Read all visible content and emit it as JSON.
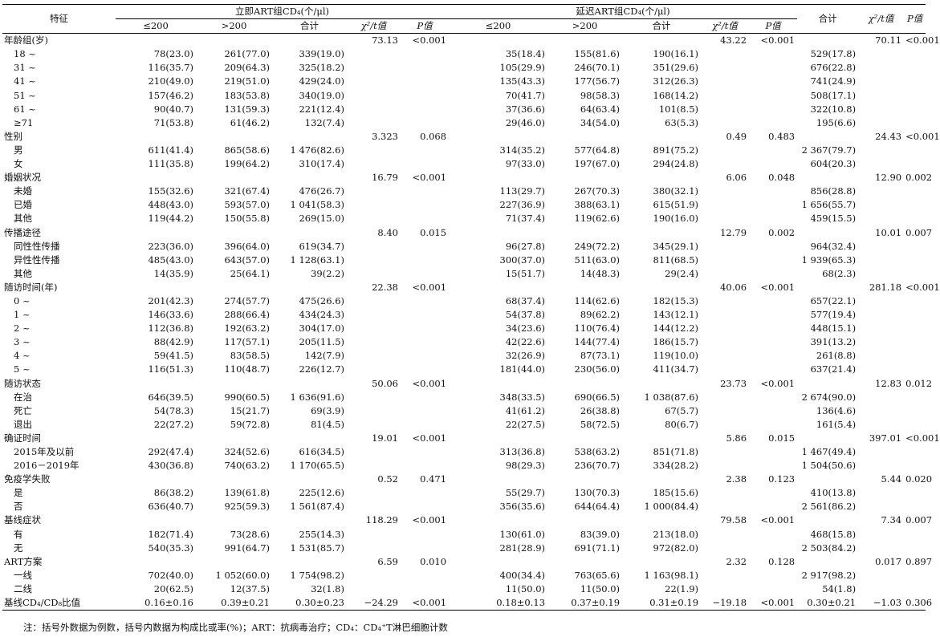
{
  "header": {
    "feature": "特征",
    "immediate_group": "立即ART组CD₄(个/μl)",
    "delayed_group": "延迟ART组CD₄(个/μl)",
    "total": "合计",
    "chi_t": "χ²/t值",
    "p": "P值",
    "le200": "≤200",
    "gt200": ">200",
    "subtotal": "合计"
  },
  "rows": [
    {
      "label": "年龄组(岁)",
      "type": "cat",
      "i_stat": "73.13",
      "i_p": "<0.001",
      "d_stat": "43.22",
      "d_p": "<0.001",
      "t_stat": "70.11",
      "t_p": "<0.001"
    },
    {
      "label": "18 ~",
      "type": "sub",
      "i1": "78(23.0)",
      "i2": "261(77.0)",
      "i3": "339(19.0)",
      "d1": "35(18.4)",
      "d2": "155(81.6)",
      "d3": "190(16.1)",
      "t": "529(17.8)"
    },
    {
      "label": "31 ~",
      "type": "sub",
      "i1": "116(35.7)",
      "i2": "209(64.3)",
      "i3": "325(18.2)",
      "d1": "105(29.9)",
      "d2": "246(70.1)",
      "d3": "351(29.6)",
      "t": "676(22.8)"
    },
    {
      "label": "41 ~",
      "type": "sub",
      "i1": "210(49.0)",
      "i2": "219(51.0)",
      "i3": "429(24.0)",
      "d1": "135(43.3)",
      "d2": "177(56.7)",
      "d3": "312(26.3)",
      "t": "741(24.9)"
    },
    {
      "label": "51 ~",
      "type": "sub",
      "i1": "157(46.2)",
      "i2": "183(53.8)",
      "i3": "340(19.0)",
      "d1": "70(41.7)",
      "d2": "98(58.3)",
      "d3": "168(14.2)",
      "t": "508(17.1)"
    },
    {
      "label": "61 ~",
      "type": "sub",
      "i1": "90(40.7)",
      "i2": "131(59.3)",
      "i3": "221(12.4)",
      "d1": "37(36.6)",
      "d2": "64(63.4)",
      "d3": "101(8.5)",
      "t": "322(10.8)"
    },
    {
      "label": "≥71",
      "type": "sub",
      "i1": "71(53.8)",
      "i2": "61(46.2)",
      "i3": "132(7.4)",
      "d1": "29(46.0)",
      "d2": "34(54.0)",
      "d3": "63(5.3)",
      "t": "195(6.6)"
    },
    {
      "label": "性别",
      "type": "cat",
      "i_stat": "3.323",
      "i_p": "0.068",
      "d_stat": "0.49",
      "d_p": "0.483",
      "t_stat": "24.43",
      "t_p": "<0.001"
    },
    {
      "label": "男",
      "type": "sub",
      "i1": "611(41.4)",
      "i2": "865(58.6)",
      "i3": "1 476(82.6)",
      "d1": "314(35.2)",
      "d2": "577(64.8)",
      "d3": "891(75.2)",
      "t": "2 367(79.7)"
    },
    {
      "label": "女",
      "type": "sub",
      "i1": "111(35.8)",
      "i2": "199(64.2)",
      "i3": "310(17.4)",
      "d1": "97(33.0)",
      "d2": "197(67.0)",
      "d3": "294(24.8)",
      "t": "604(20.3)"
    },
    {
      "label": "婚姻状况",
      "type": "cat",
      "i_stat": "16.79",
      "i_p": "<0.001",
      "d_stat": "6.06",
      "d_p": "0.048",
      "t_stat": "12.90",
      "t_p": "0.002"
    },
    {
      "label": "未婚",
      "type": "sub",
      "i1": "155(32.6)",
      "i2": "321(67.4)",
      "i3": "476(26.7)",
      "d1": "113(29.7)",
      "d2": "267(70.3)",
      "d3": "380(32.1)",
      "t": "856(28.8)"
    },
    {
      "label": "已婚",
      "type": "sub",
      "i1": "448(43.0)",
      "i2": "593(57.0)",
      "i3": "1 041(58.3)",
      "d1": "227(36.9)",
      "d2": "388(63.1)",
      "d3": "615(51.9)",
      "t": "1 656(55.7)"
    },
    {
      "label": "其他",
      "type": "sub",
      "i1": "119(44.2)",
      "i2": "150(55.8)",
      "i3": "269(15.0)",
      "d1": "71(37.4)",
      "d2": "119(62.6)",
      "d3": "190(16.0)",
      "t": "459(15.5)"
    },
    {
      "label": "传播途径",
      "type": "cat",
      "i_stat": "8.40",
      "i_p": "0.015",
      "d_stat": "12.79",
      "d_p": "0.002",
      "t_stat": "10.01",
      "t_p": "0.007"
    },
    {
      "label": "同性性传播",
      "type": "sub",
      "i1": "223(36.0)",
      "i2": "396(64.0)",
      "i3": "619(34.7)",
      "d1": "96(27.8)",
      "d2": "249(72.2)",
      "d3": "345(29.1)",
      "t": "964(32.4)"
    },
    {
      "label": "异性性传播",
      "type": "sub",
      "i1": "485(43.0)",
      "i2": "643(57.0)",
      "i3": "1 128(63.1)",
      "d1": "300(37.0)",
      "d2": "511(63.0)",
      "d3": "811(68.5)",
      "t": "1 939(65.3)"
    },
    {
      "label": "其他",
      "type": "sub",
      "i1": "14(35.9)",
      "i2": "25(64.1)",
      "i3": "39(2.2)",
      "d1": "15(51.7)",
      "d2": "14(48.3)",
      "d3": "29(2.4)",
      "t": "68(2.3)"
    },
    {
      "label": "随访时间(年)",
      "type": "cat",
      "i_stat": "22.38",
      "i_p": "<0.001",
      "d_stat": "40.06",
      "d_p": "<0.001",
      "t_stat": "281.18",
      "t_p": "<0.001"
    },
    {
      "label": "0 ~",
      "type": "sub",
      "i1": "201(42.3)",
      "i2": "274(57.7)",
      "i3": "475(26.6)",
      "d1": "68(37.4)",
      "d2": "114(62.6)",
      "d3": "182(15.3)",
      "t": "657(22.1)"
    },
    {
      "label": "1 ~",
      "type": "sub",
      "i1": "146(33.6)",
      "i2": "288(66.4)",
      "i3": "434(24.3)",
      "d1": "54(37.8)",
      "d2": "89(62.2)",
      "d3": "143(12.1)",
      "t": "577(19.4)"
    },
    {
      "label": "2 ~",
      "type": "sub",
      "i1": "112(36.8)",
      "i2": "192(63.2)",
      "i3": "304(17.0)",
      "d1": "34(23.6)",
      "d2": "110(76.4)",
      "d3": "144(12.2)",
      "t": "448(15.1)"
    },
    {
      "label": "3 ~",
      "type": "sub",
      "i1": "88(42.9)",
      "i2": "117(57.1)",
      "i3": "205(11.5)",
      "d1": "42(22.6)",
      "d2": "144(77.4)",
      "d3": "186(15.7)",
      "t": "391(13.2)"
    },
    {
      "label": "4 ~",
      "type": "sub",
      "i1": "59(41.5)",
      "i2": "83(58.5)",
      "i3": "142(7.9)",
      "d1": "32(26.9)",
      "d2": "87(73.1)",
      "d3": "119(10.0)",
      "t": "261(8.8)"
    },
    {
      "label": "5 ~",
      "type": "sub",
      "i1": "116(51.3)",
      "i2": "110(48.7)",
      "i3": "226(12.7)",
      "d1": "181(44.0)",
      "d2": "230(56.0)",
      "d3": "411(34.7)",
      "t": "637(21.4)"
    },
    {
      "label": "随访状态",
      "type": "cat",
      "i_stat": "50.06",
      "i_p": "<0.001",
      "d_stat": "23.73",
      "d_p": "<0.001",
      "t_stat": "12.83",
      "t_p": "0.012"
    },
    {
      "label": "在治",
      "type": "sub",
      "i1": "646(39.5)",
      "i2": "990(60.5)",
      "i3": "1 636(91.6)",
      "d1": "348(33.5)",
      "d2": "690(66.5)",
      "d3": "1 038(87.6)",
      "t": "2 674(90.0)"
    },
    {
      "label": "死亡",
      "type": "sub",
      "i1": "54(78.3)",
      "i2": "15(21.7)",
      "i3": "69(3.9)",
      "d1": "41(61.2)",
      "d2": "26(38.8)",
      "d3": "67(5.7)",
      "t": "136(4.6)"
    },
    {
      "label": "退出",
      "type": "sub",
      "i1": "22(27.2)",
      "i2": "59(72.8)",
      "i3": "81(4.5)",
      "d1": "22(27.5)",
      "d2": "58(72.5)",
      "d3": "80(6.7)",
      "t": "161(5.4)"
    },
    {
      "label": "确证时间",
      "type": "cat",
      "i_stat": "19.01",
      "i_p": "<0.001",
      "d_stat": "5.86",
      "d_p": "0.015",
      "t_stat": "397.01",
      "t_p": "<0.001"
    },
    {
      "label": "2015年及以前",
      "type": "sub",
      "i1": "292(47.4)",
      "i2": "324(52.6)",
      "i3": "616(34.5)",
      "d1": "313(36.8)",
      "d2": "538(63.2)",
      "d3": "851(71.8)",
      "t": "1 467(49.4)"
    },
    {
      "label": "2016－2019年",
      "type": "sub",
      "i1": "430(36.8)",
      "i2": "740(63.2)",
      "i3": "1 170(65.5)",
      "d1": "98(29.3)",
      "d2": "236(70.7)",
      "d3": "334(28.2)",
      "t": "1 504(50.6)"
    },
    {
      "label": "免疫学失败",
      "type": "cat",
      "i_stat": "0.52",
      "i_p": "0.471",
      "d_stat": "2.38",
      "d_p": "0.123",
      "t_stat": "5.44",
      "t_p": "0.020"
    },
    {
      "label": "是",
      "type": "sub",
      "i1": "86(38.2)",
      "i2": "139(61.8)",
      "i3": "225(12.6)",
      "d1": "55(29.7)",
      "d2": "130(70.3)",
      "d3": "185(15.6)",
      "t": "410(13.8)"
    },
    {
      "label": "否",
      "type": "sub",
      "i1": "636(40.7)",
      "i2": "925(59.3)",
      "i3": "1 561(87.4)",
      "d1": "356(35.6)",
      "d2": "644(64.4)",
      "d3": "1 000(84.4)",
      "t": "2 561(86.2)"
    },
    {
      "label": "基线症状",
      "type": "cat",
      "i_stat": "118.29",
      "i_p": "<0.001",
      "d_stat": "79.58",
      "d_p": "<0.001",
      "t_stat": "7.34",
      "t_p": "0.007"
    },
    {
      "label": "有",
      "type": "sub",
      "i1": "182(71.4)",
      "i2": "73(28.6)",
      "i3": "255(14.3)",
      "d1": "130(61.0)",
      "d2": "83(39.0)",
      "d3": "213(18.0)",
      "t": "468(15.8)"
    },
    {
      "label": "无",
      "type": "sub",
      "i1": "540(35.3)",
      "i2": "991(64.7)",
      "i3": "1 531(85.7)",
      "d1": "281(28.9)",
      "d2": "691(71.1)",
      "d3": "972(82.0)",
      "t": "2 503(84.2)"
    },
    {
      "label": "ART方案",
      "type": "cat",
      "i_stat": "6.59",
      "i_p": "0.010",
      "d_stat": "2.32",
      "d_p": "0.128",
      "t_stat": "0.017",
      "t_p": "0.897"
    },
    {
      "label": "一线",
      "type": "sub",
      "i1": "702(40.0)",
      "i2": "1 052(60.0)",
      "i3": "1 754(98.2)",
      "d1": "400(34.4)",
      "d2": "763(65.6)",
      "d3": "1 163(98.1)",
      "t": "2 917(98.2)"
    },
    {
      "label": "二线",
      "type": "sub",
      "i1": "20(62.5)",
      "i2": "12(37.5)",
      "i3": "32(1.8)",
      "d1": "11(50.0)",
      "d2": "11(50.0)",
      "d3": "22(1.9)",
      "t": "54(1.8)"
    },
    {
      "label": "基线CD₄/CD₈比值",
      "type": "last",
      "i1": "0.16±0.16",
      "i2": "0.39±0.21",
      "i3": "0.30±0.23",
      "i_stat": "−24.29",
      "i_p": "<0.001",
      "d1": "0.18±0.13",
      "d2": "0.37±0.19",
      "d3": "0.31±0.19",
      "d_stat": "−19.18",
      "d_p": "<0.001",
      "t": "0.30±0.21",
      "t_stat": "−1.03",
      "t_p": "0.306"
    }
  ],
  "note": "注：括号外数据为例数，括号内数据为构成比或率(%)；ART：抗病毒治疗；CD₄：CD₄⁺T淋巴细胞计数"
}
